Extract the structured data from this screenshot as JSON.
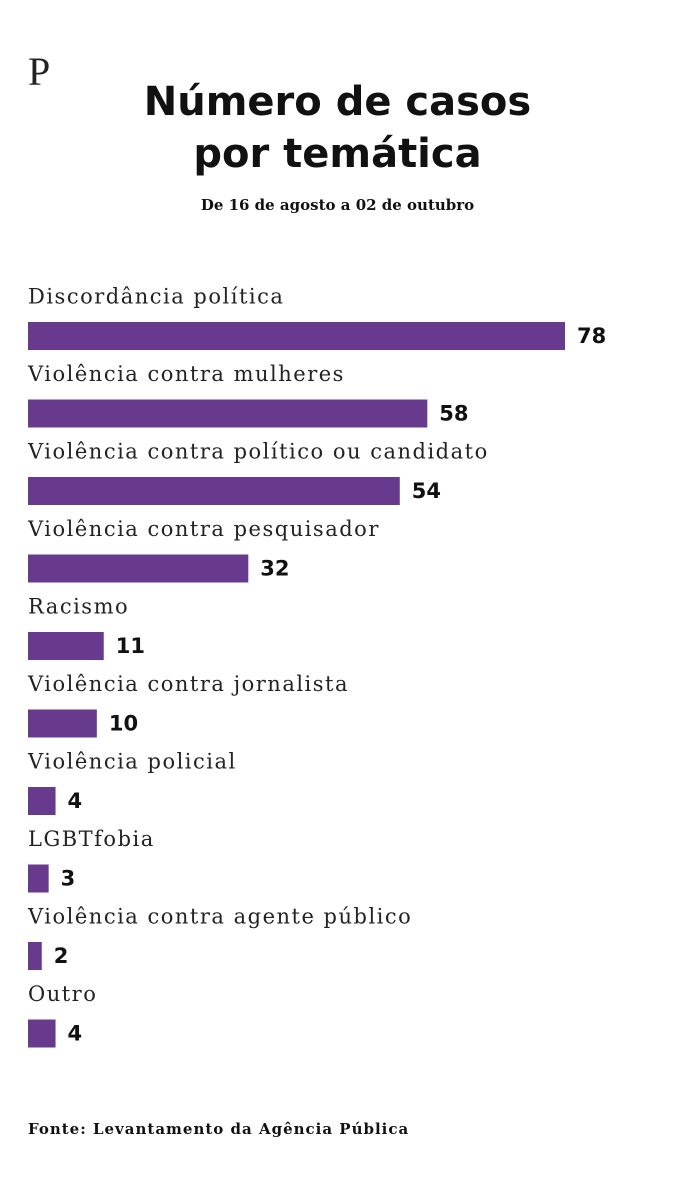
{
  "logo": "P",
  "chart_data": {
    "type": "bar",
    "orientation": "horizontal",
    "title": "Número de casos por temática",
    "subtitle": "De 16 de agosto a 02 de outubro",
    "source": "Fonte: Levantamento da Agência Pública",
    "categories": [
      "Discordância política",
      "Violência contra mulheres",
      "Violência contra político ou candidato",
      "Violência contra pesquisador",
      "Racismo",
      "Violência contra jornalista",
      "Violência policial",
      "LGBTfobia",
      "Violência contra agente público",
      "Outro"
    ],
    "values": [
      78,
      58,
      54,
      32,
      11,
      10,
      4,
      3,
      2,
      4
    ],
    "color": "#673a8e"
  }
}
